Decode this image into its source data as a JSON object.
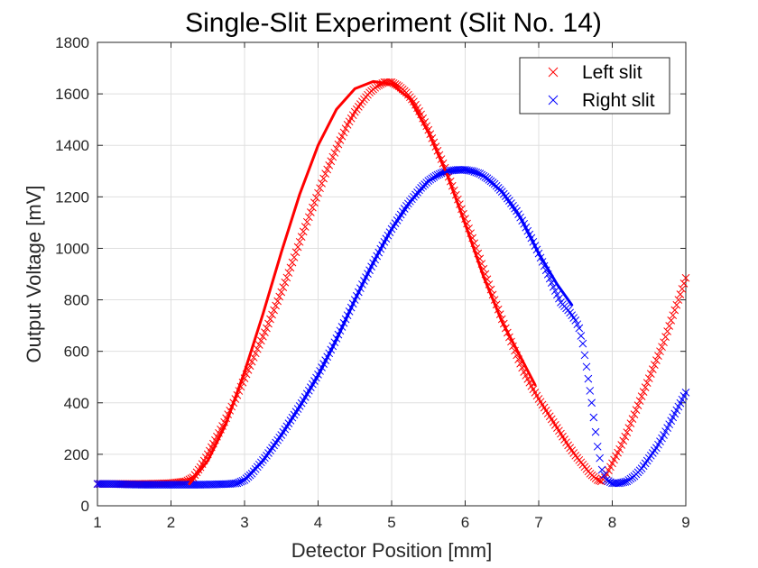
{
  "chart_data": {
    "type": "scatter",
    "title": "Single-Slit Experiment (Slit No. 14)",
    "xlabel": "Detector Position [mm]",
    "ylabel": "Output Voltage [mV]",
    "xlim": [
      1,
      9
    ],
    "ylim": [
      0,
      1800
    ],
    "xticks": [
      "1",
      "2",
      "3",
      "4",
      "5",
      "6",
      "7",
      "8",
      "9"
    ],
    "yticks": [
      "0",
      "200",
      "400",
      "600",
      "800",
      "1000",
      "1200",
      "1400",
      "1600",
      "1800"
    ],
    "grid": true,
    "legend_position": "top-right",
    "series": [
      {
        "name": "Left slit",
        "marker": "x",
        "color": "#ff0000",
        "points": [
          [
            1.0,
            85
          ],
          [
            1.2,
            85
          ],
          [
            1.4,
            85
          ],
          [
            1.6,
            85
          ],
          [
            1.8,
            86
          ],
          [
            2.0,
            88
          ],
          [
            2.2,
            95
          ],
          [
            2.3,
            110
          ],
          [
            2.4,
            150
          ],
          [
            2.5,
            200
          ],
          [
            2.6,
            255
          ],
          [
            2.7,
            310
          ],
          [
            2.8,
            370
          ],
          [
            2.9,
            430
          ],
          [
            3.0,
            495
          ],
          [
            3.1,
            560
          ],
          [
            3.2,
            625
          ],
          [
            3.3,
            690
          ],
          [
            3.4,
            760
          ],
          [
            3.5,
            830
          ],
          [
            3.6,
            905
          ],
          [
            3.7,
            985
          ],
          [
            3.8,
            1065
          ],
          [
            3.9,
            1140
          ],
          [
            4.0,
            1215
          ],
          [
            4.1,
            1290
          ],
          [
            4.2,
            1355
          ],
          [
            4.3,
            1420
          ],
          [
            4.4,
            1480
          ],
          [
            4.5,
            1530
          ],
          [
            4.6,
            1570
          ],
          [
            4.7,
            1605
          ],
          [
            4.8,
            1630
          ],
          [
            4.9,
            1645
          ],
          [
            5.0,
            1645
          ],
          [
            5.1,
            1630
          ],
          [
            5.2,
            1605
          ],
          [
            5.3,
            1570
          ],
          [
            5.4,
            1520
          ],
          [
            5.5,
            1460
          ],
          [
            5.6,
            1395
          ],
          [
            5.7,
            1330
          ],
          [
            5.8,
            1260
          ],
          [
            5.9,
            1190
          ],
          [
            6.0,
            1115
          ],
          [
            6.1,
            1040
          ],
          [
            6.2,
            960
          ],
          [
            6.3,
            880
          ],
          [
            6.4,
            800
          ],
          [
            6.5,
            725
          ],
          [
            6.6,
            655
          ],
          [
            6.7,
            585
          ],
          [
            6.8,
            520
          ],
          [
            6.9,
            465
          ],
          [
            7.0,
            415
          ],
          [
            7.1,
            370
          ],
          [
            7.2,
            325
          ],
          [
            7.3,
            280
          ],
          [
            7.4,
            235
          ],
          [
            7.5,
            195
          ],
          [
            7.6,
            160
          ],
          [
            7.7,
            125
          ],
          [
            7.8,
            100
          ],
          [
            7.85,
            95
          ],
          [
            7.9,
            110
          ],
          [
            8.0,
            165
          ],
          [
            8.1,
            220
          ],
          [
            8.2,
            285
          ],
          [
            8.3,
            355
          ],
          [
            8.4,
            425
          ],
          [
            8.5,
            495
          ],
          [
            8.6,
            565
          ],
          [
            8.7,
            635
          ],
          [
            8.8,
            720
          ],
          [
            8.9,
            800
          ],
          [
            9.0,
            885
          ]
        ]
      },
      {
        "name": "Right slit",
        "marker": "x",
        "color": "#0000ff",
        "points": [
          [
            1.0,
            85
          ],
          [
            1.2,
            85
          ],
          [
            1.4,
            83
          ],
          [
            1.6,
            82
          ],
          [
            1.8,
            82
          ],
          [
            2.0,
            82
          ],
          [
            2.2,
            82
          ],
          [
            2.4,
            82
          ],
          [
            2.6,
            83
          ],
          [
            2.8,
            85
          ],
          [
            2.9,
            88
          ],
          [
            3.0,
            100
          ],
          [
            3.1,
            125
          ],
          [
            3.2,
            160
          ],
          [
            3.3,
            195
          ],
          [
            3.4,
            235
          ],
          [
            3.5,
            275
          ],
          [
            3.6,
            320
          ],
          [
            3.7,
            365
          ],
          [
            3.8,
            410
          ],
          [
            3.9,
            460
          ],
          [
            4.0,
            510
          ],
          [
            4.1,
            565
          ],
          [
            4.2,
            620
          ],
          [
            4.3,
            680
          ],
          [
            4.4,
            740
          ],
          [
            4.5,
            800
          ],
          [
            4.6,
            860
          ],
          [
            4.7,
            915
          ],
          [
            4.8,
            970
          ],
          [
            4.9,
            1025
          ],
          [
            5.0,
            1075
          ],
          [
            5.1,
            1120
          ],
          [
            5.2,
            1165
          ],
          [
            5.3,
            1200
          ],
          [
            5.4,
            1235
          ],
          [
            5.5,
            1262
          ],
          [
            5.6,
            1282
          ],
          [
            5.7,
            1295
          ],
          [
            5.8,
            1302
          ],
          [
            5.9,
            1305
          ],
          [
            6.0,
            1305
          ],
          [
            6.1,
            1300
          ],
          [
            6.2,
            1290
          ],
          [
            6.3,
            1272
          ],
          [
            6.4,
            1250
          ],
          [
            6.5,
            1220
          ],
          [
            6.6,
            1185
          ],
          [
            6.7,
            1145
          ],
          [
            6.8,
            1095
          ],
          [
            6.9,
            1040
          ],
          [
            7.0,
            980
          ],
          [
            7.1,
            915
          ],
          [
            7.2,
            850
          ],
          [
            7.3,
            790
          ],
          [
            7.4,
            760
          ],
          [
            7.5,
            720
          ],
          [
            7.55,
            690
          ],
          [
            7.6,
            630
          ],
          [
            7.65,
            540
          ],
          [
            7.72,
            400
          ],
          [
            7.8,
            230
          ],
          [
            7.86,
            140
          ],
          [
            7.92,
            100
          ],
          [
            8.0,
            88
          ],
          [
            8.1,
            88
          ],
          [
            8.2,
            95
          ],
          [
            8.3,
            115
          ],
          [
            8.4,
            145
          ],
          [
            8.5,
            185
          ],
          [
            8.6,
            225
          ],
          [
            8.7,
            275
          ],
          [
            8.8,
            330
          ],
          [
            8.9,
            385
          ],
          [
            9.0,
            440
          ]
        ]
      }
    ],
    "fit_curves": [
      {
        "color": "#ff0000",
        "x": [
          2.25,
          2.5,
          2.75,
          3.0,
          3.25,
          3.5,
          3.75,
          4.0,
          4.25,
          4.5,
          4.75,
          5.0,
          5.25,
          5.5,
          5.75,
          6.0,
          6.25,
          6.5,
          6.75,
          6.95
        ],
        "y": [
          85,
          175,
          320,
          520,
          745,
          985,
          1210,
          1400,
          1540,
          1620,
          1648,
          1638,
          1580,
          1450,
          1290,
          1095,
          890,
          715,
          580,
          470
        ]
      },
      {
        "color": "#0000ff",
        "x": [
          3.0,
          3.25,
          3.5,
          3.75,
          4.0,
          4.25,
          4.5,
          4.75,
          5.0,
          5.25,
          5.5,
          5.75,
          6.0,
          6.25,
          6.5,
          6.75,
          7.0,
          7.25,
          7.45
        ],
        "y": [
          100,
          175,
          275,
          385,
          505,
          645,
          800,
          945,
          1075,
          1180,
          1262,
          1298,
          1305,
          1282,
          1220,
          1120,
          980,
          860,
          780
        ]
      }
    ]
  }
}
